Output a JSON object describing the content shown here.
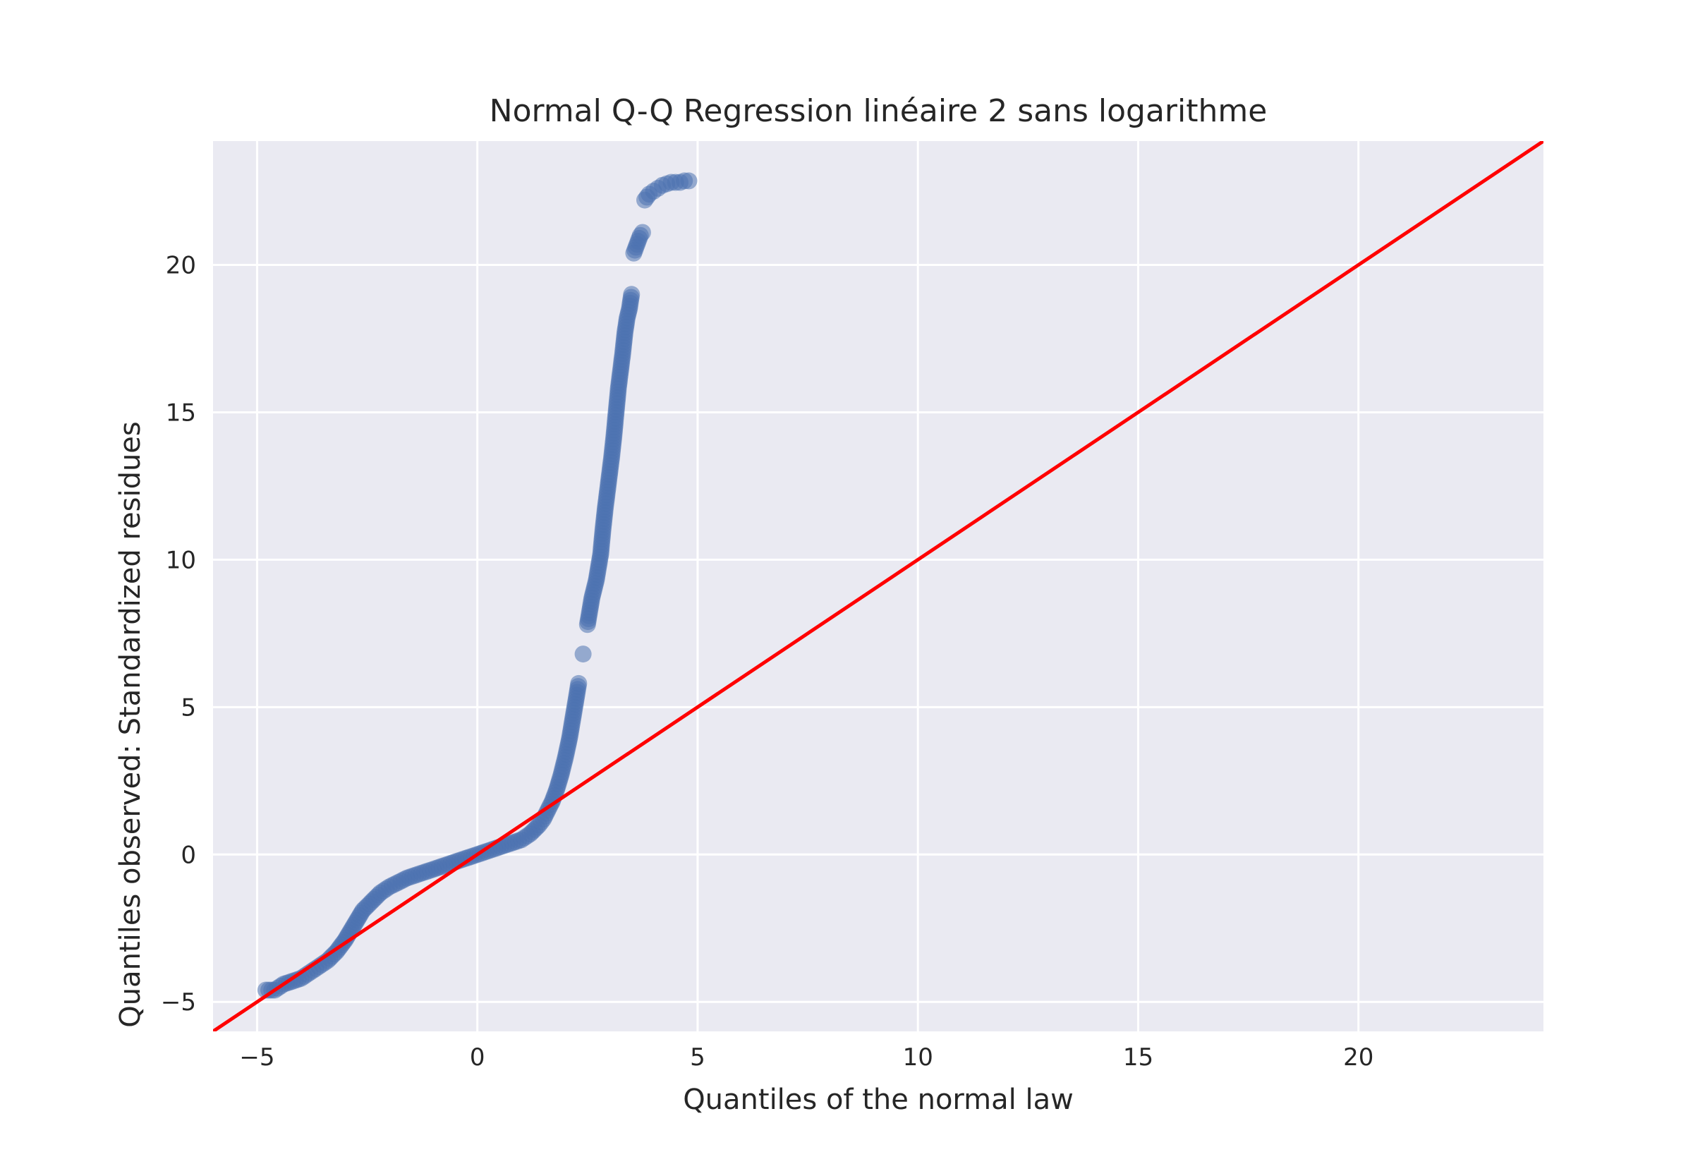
{
  "chart_data": {
    "type": "scatter",
    "title": "Normal Q-Q Regression linéaire 2 sans logarithme",
    "xlabel": "Quantiles of the normal law",
    "ylabel": "Quantiles observed: Standardized residues",
    "xlim": [
      -6,
      24.2
    ],
    "ylim": [
      -6,
      24.2
    ],
    "xticks": [
      -5,
      0,
      5,
      10,
      15,
      20
    ],
    "yticks": [
      -5,
      0,
      5,
      10,
      15,
      20
    ],
    "xtick_labels": [
      "−5",
      "0",
      "5",
      "10",
      "15",
      "20"
    ],
    "ytick_labels": [
      "−5",
      "0",
      "5",
      "10",
      "15",
      "20"
    ],
    "grid": true,
    "legend": "none",
    "colors": {
      "background": "#EAEAF2",
      "grid": "#FFFFFF",
      "points": "#4C72B0",
      "reference_line": "#FF0000"
    },
    "series": [
      {
        "kind": "points",
        "x": [
          -4.8,
          -4.6,
          -4.4,
          -4.2,
          -4.0,
          -3.8,
          -3.6,
          -3.4,
          -3.2,
          -3.0,
          -2.8,
          -2.6,
          -2.4,
          -2.2,
          -2.0,
          -1.8,
          -1.6,
          -1.4,
          -1.2,
          -1.0,
          -0.8,
          -0.6,
          -0.4,
          -0.2,
          0.0,
          0.2,
          0.4,
          0.6,
          0.8,
          1.0,
          1.2,
          1.4,
          1.5,
          1.6,
          1.7,
          1.8,
          1.9,
          2.0,
          2.1,
          2.2,
          2.3,
          2.4,
          2.5,
          2.6,
          2.7,
          2.8,
          2.85,
          2.9,
          2.95,
          3.0,
          3.05,
          3.1,
          3.15,
          3.2,
          3.25,
          3.3,
          3.35,
          3.4,
          3.45,
          3.5,
          3.55,
          3.6,
          3.65,
          3.7,
          3.75,
          3.8,
          3.85,
          3.9,
          4.0,
          4.1,
          4.2,
          4.3,
          4.4,
          4.5,
          4.6,
          4.7,
          4.8
        ],
        "y": [
          -4.6,
          -4.6,
          -4.4,
          -4.3,
          -4.2,
          -4.0,
          -3.8,
          -3.6,
          -3.3,
          -2.9,
          -2.4,
          -1.9,
          -1.6,
          -1.3,
          -1.1,
          -0.95,
          -0.8,
          -0.7,
          -0.6,
          -0.5,
          -0.4,
          -0.3,
          -0.2,
          -0.1,
          0.0,
          0.1,
          0.2,
          0.3,
          0.4,
          0.5,
          0.7,
          1.0,
          1.2,
          1.5,
          1.8,
          2.2,
          2.7,
          3.3,
          4.0,
          4.9,
          5.8,
          6.8,
          7.8,
          8.7,
          9.3,
          10.2,
          11.0,
          11.7,
          12.3,
          12.9,
          13.5,
          14.2,
          15.0,
          15.8,
          16.4,
          17.0,
          17.7,
          18.2,
          18.5,
          19.0,
          20.4,
          20.6,
          20.8,
          21.0,
          21.1,
          22.2,
          22.3,
          22.4,
          22.5,
          22.6,
          22.7,
          22.75,
          22.8,
          22.8,
          22.8,
          22.85,
          22.85
        ]
      },
      {
        "kind": "reference-line",
        "x": [
          -6,
          24.2
        ],
        "y": [
          -6,
          24.2
        ]
      }
    ]
  }
}
